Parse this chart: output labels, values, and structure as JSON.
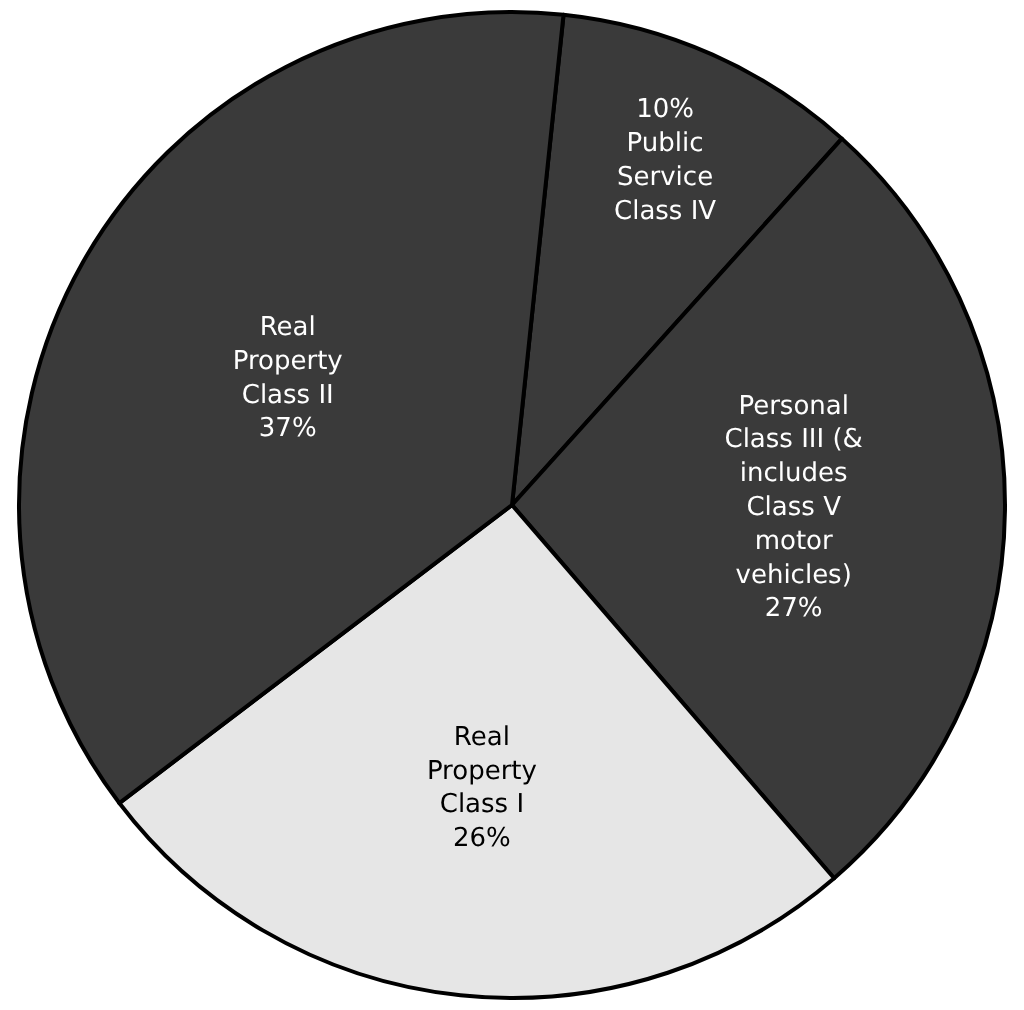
{
  "chart_data": {
    "type": "pie",
    "categories": [
      "Public Service Class IV",
      "Personal Class III (& includes Class V motor vehicles)",
      "Real Property Class I",
      "Real Property Class II"
    ],
    "values": [
      10,
      27,
      26,
      37
    ],
    "value_labels": [
      "10%",
      "27%",
      "26%",
      "37%"
    ],
    "colors": [
      "#3a3a3a",
      "#3a3a3a",
      "#e6e6e6",
      "#3a3a3a"
    ],
    "legend": false
  }
}
